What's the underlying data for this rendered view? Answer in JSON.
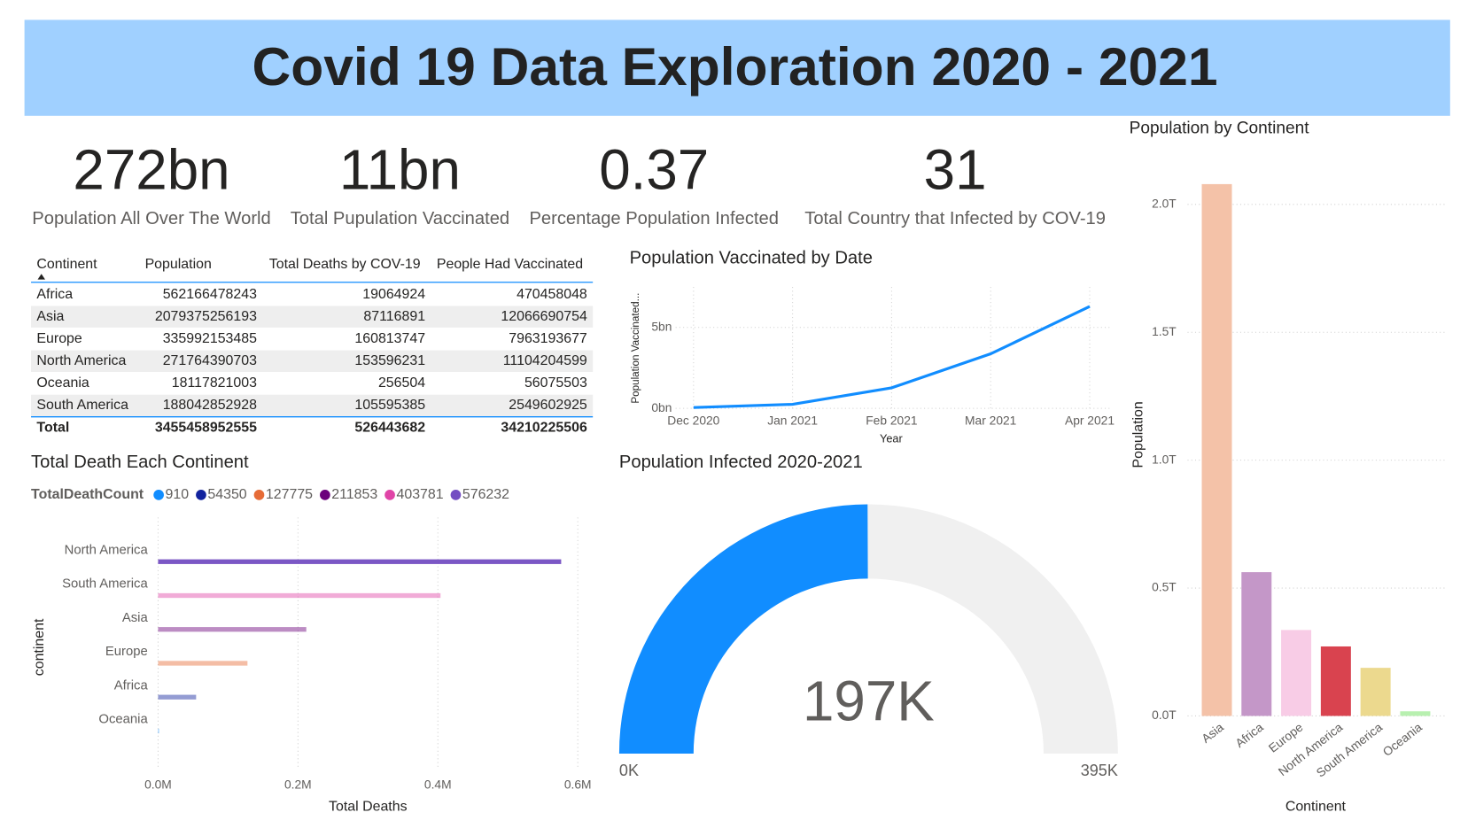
{
  "header": {
    "title": "Covid 19 Data Exploration 2020 - 2021"
  },
  "kpis": [
    {
      "value": "272bn",
      "label": "Population All Over The World"
    },
    {
      "value": "11bn",
      "label": "Total Pupulation Vaccinated"
    },
    {
      "value": "0.37",
      "label": "Percentage Population Infected"
    },
    {
      "value": "31",
      "label": "Total Country that Infected by COV-19"
    }
  ],
  "table": {
    "columns": [
      "Continent",
      "Population",
      "Total Deaths by COV-19",
      "People Had Vaccinated"
    ],
    "rows": [
      [
        "Africa",
        562166478243,
        19064924,
        470458048
      ],
      [
        "Asia",
        2079375256193,
        87116891,
        12066690754
      ],
      [
        "Europe",
        335992153485,
        160813747,
        7963193677
      ],
      [
        "North America",
        271764390703,
        153596231,
        11104204599
      ],
      [
        "Oceania",
        18117821003,
        256504,
        56075503
      ],
      [
        "South America",
        188042852928,
        105595385,
        2549602925
      ]
    ],
    "total": [
      "Total",
      3455458952555,
      526443682,
      34210225506
    ]
  },
  "chart_data": [
    {
      "type": "hbar",
      "title": "Total Death Each Continent",
      "legend_title": "TotalDeathCount",
      "categories": [
        "North America",
        "South America",
        "Asia",
        "Europe",
        "Africa",
        "Oceania"
      ],
      "values": [
        576232,
        403781,
        211853,
        127775,
        54350,
        910
      ],
      "colors": [
        "#744ec2",
        "#e044a7",
        "#6b007b",
        "#e66c37",
        "#12239e",
        "#118dff"
      ],
      "xlim": [
        0,
        600000
      ],
      "xticks": [
        {
          "value": 0,
          "label": "0.0M"
        },
        {
          "value": 200000,
          "label": "0.2M"
        },
        {
          "value": 400000,
          "label": "0.4M"
        },
        {
          "value": 600000,
          "label": "0.6M"
        }
      ],
      "xlabel": "Total Deaths",
      "ylabel": "continent",
      "grid": true
    },
    {
      "type": "line",
      "title": "Population Vaccinated by Date",
      "categories": [
        "Dec 2020",
        "Jan 2021",
        "Feb 2021",
        "Mar 2021",
        "Apr 2021"
      ],
      "values": [
        0.05,
        0.25,
        1.27,
        3.37,
        6.3
      ],
      "color": "#118dff",
      "ylim": [
        0,
        7.5
      ],
      "yticks": [
        {
          "value": 0,
          "label": "0bn"
        },
        {
          "value": 5,
          "label": "5bn"
        }
      ],
      "xlabel": "Year",
      "ylabel": "Population Vaccinated...",
      "grid": true
    },
    {
      "type": "gauge",
      "title": "Population Infected 2020-2021",
      "values": [
        197000
      ],
      "value_labels": [
        "197K"
      ],
      "ylim": [
        0,
        395000
      ],
      "yticks": [
        {
          "value": 0,
          "label": "0K"
        },
        {
          "value": 395000,
          "label": "395K"
        }
      ],
      "color": "#118dff",
      "track_color": "#f0f0f0"
    },
    {
      "type": "bar",
      "title": "Population by Continent",
      "categories": [
        "Asia",
        "Africa",
        "Europe",
        "North America",
        "South America",
        "Oceania"
      ],
      "values": [
        2079375256193,
        562166478243,
        335992153485,
        271764390703,
        188042852928,
        18117821003
      ],
      "colors": [
        "#f4c2a8",
        "#c497c8",
        "#f8cce6",
        "#d9434f",
        "#ecd98e",
        "#b8f0b0"
      ],
      "ylim": [
        0,
        2100000000000
      ],
      "yticks": [
        {
          "value": 0,
          "label": "0.0T"
        },
        {
          "value": 500000000000,
          "label": "0.5T"
        },
        {
          "value": 1000000000000,
          "label": "1.0T"
        },
        {
          "value": 1500000000000,
          "label": "1.5T"
        },
        {
          "value": 2000000000000,
          "label": "2.0T"
        }
      ],
      "xlabel": "Continent",
      "ylabel": "Population",
      "grid": true
    }
  ]
}
